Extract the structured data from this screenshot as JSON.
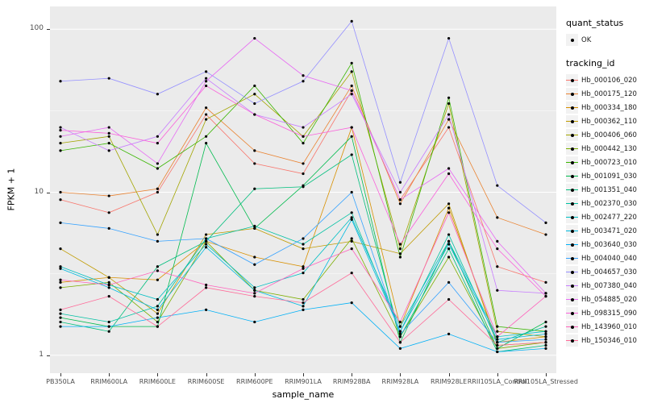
{
  "panel": {
    "bg": "#EBEBEB",
    "grid_major_color": "#FFFFFF",
    "grid_minor_color": "#FFFFFF",
    "point_color": "#000000"
  },
  "legend": {
    "quant_title": "quant_status",
    "quant_items": [
      {
        "label": "OK"
      }
    ],
    "tracking_title": "tracking_id"
  },
  "chart_data": {
    "type": "line",
    "title": "",
    "xlabel": "sample_name",
    "ylabel": "FPKM + 1",
    "y_scale": "log10",
    "log_range": [
      -0.11,
      2.14
    ],
    "y_ticks": [
      {
        "label": "100",
        "value": 100
      },
      {
        "label": "10",
        "value": 10
      },
      {
        "label": "1",
        "value": 1
      }
    ],
    "minor_gridlines": [
      3.162,
      31.62
    ],
    "categories": [
      "PB350LA",
      "RRIM600LA",
      "RRIM600LE",
      "RRIM600SE",
      "RRIM600PE",
      "RRIM901LA",
      "RRIM928BA",
      "RRIM928LA",
      "RRIM928LE",
      "RRII105LA_Control",
      "RRII105LA_Stressed"
    ],
    "series": [
      {
        "name": "Hb_000106_020",
        "color": "#F8766D",
        "values": [
          9,
          7.5,
          10,
          30,
          15,
          13,
          42,
          9,
          25,
          3.5,
          2.8
        ]
      },
      {
        "name": "Hb_000175_120",
        "color": "#EA8331",
        "values": [
          10,
          9.5,
          10.5,
          33,
          18,
          15,
          45,
          8.5,
          28,
          7,
          5.5
        ]
      },
      {
        "name": "Hb_000334_180",
        "color": "#D89000",
        "values": [
          2.8,
          3,
          2.9,
          5,
          4,
          3.5,
          25,
          1.5,
          8,
          1.2,
          1.3
        ]
      },
      {
        "name": "Hb_000362_110",
        "color": "#C09B00",
        "values": [
          4.5,
          3,
          1.8,
          5.5,
          6,
          4.5,
          5,
          4.2,
          8.5,
          1.15,
          1.2
        ]
      },
      {
        "name": "Hb_000406_060",
        "color": "#A3A500",
        "values": [
          20,
          22,
          5.5,
          28,
          40,
          22,
          55,
          4.5,
          35,
          1.4,
          1.3
        ]
      },
      {
        "name": "Hb_000442_130",
        "color": "#7CAE00",
        "values": [
          2.6,
          2.8,
          1.6,
          5,
          2.5,
          2.2,
          5.2,
          1.3,
          4,
          1.1,
          1.2
        ]
      },
      {
        "name": "Hb_000723_010",
        "color": "#39B600",
        "values": [
          18,
          20,
          14,
          22,
          45,
          20,
          62,
          4,
          38,
          1.5,
          1.4
        ]
      },
      {
        "name": "Hb_001091_030",
        "color": "#00BB4E",
        "values": [
          1.7,
          1.5,
          1.5,
          20,
          6,
          11,
          22,
          1.2,
          5,
          1.1,
          1.6
        ]
      },
      {
        "name": "Hb_001351_040",
        "color": "#00BF7D",
        "values": [
          1.6,
          1.4,
          3.5,
          5,
          10.5,
          10.8,
          17,
          1.3,
          4.5,
          1.05,
          1.15
        ]
      },
      {
        "name": "Hb_002370_030",
        "color": "#00C1A3",
        "values": [
          1.8,
          1.6,
          2,
          5.2,
          6.2,
          4.8,
          7.5,
          1.4,
          5.5,
          1.2,
          1.5
        ]
      },
      {
        "name": "Hb_002477_220",
        "color": "#00BFC4",
        "values": [
          3.5,
          2.7,
          2.2,
          4.8,
          2.6,
          3.2,
          7,
          1.5,
          5,
          1.3,
          1.4
        ]
      },
      {
        "name": "Hb_003471_020",
        "color": "#00BAE0",
        "values": [
          3.4,
          2.6,
          1.9,
          4.6,
          2.5,
          2,
          6.8,
          1.4,
          4.8,
          1.25,
          1.35
        ]
      },
      {
        "name": "Hb_003640_030",
        "color": "#00B0F6",
        "values": [
          1.5,
          1.5,
          1.7,
          1.9,
          1.6,
          1.9,
          2.1,
          1.1,
          1.35,
          1.05,
          1.1
        ]
      },
      {
        "name": "Hb_004040_040",
        "color": "#35A2FF",
        "values": [
          6.5,
          6,
          5,
          5.2,
          3.6,
          5.2,
          10,
          1.35,
          2.8,
          1.2,
          1.25
        ]
      },
      {
        "name": "Hb_004657_030",
        "color": "#9590FF",
        "values": [
          48,
          50,
          40,
          55,
          35,
          48,
          112,
          11.5,
          88,
          11,
          6.5
        ]
      },
      {
        "name": "Hb_007380_040",
        "color": "#C77CFF",
        "values": [
          25,
          18,
          22,
          50,
          30,
          25,
          40,
          10,
          30,
          2.5,
          2.4
        ]
      },
      {
        "name": "Hb_054885_020",
        "color": "#E76BF3",
        "values": [
          22,
          25,
          15,
          48,
          88,
          52,
          42,
          9,
          14,
          5,
          2.4
        ]
      },
      {
        "name": "Hb_098315_090",
        "color": "#FA62DB",
        "values": [
          24,
          23,
          20,
          45,
          30,
          22,
          25,
          4.8,
          13,
          4.5,
          2.3
        ]
      },
      {
        "name": "Hb_143960_010",
        "color": "#FF62BC",
        "values": [
          2.9,
          2.7,
          3.3,
          2.7,
          2.4,
          3.4,
          4.5,
          1.6,
          7.5,
          1.3,
          2.3
        ]
      },
      {
        "name": "Hb_150346_010",
        "color": "#FF6A98",
        "values": [
          1.9,
          2.3,
          1.5,
          2.6,
          2.3,
          2.1,
          3.2,
          1.2,
          2.2,
          1.15,
          1.2
        ]
      }
    ]
  }
}
